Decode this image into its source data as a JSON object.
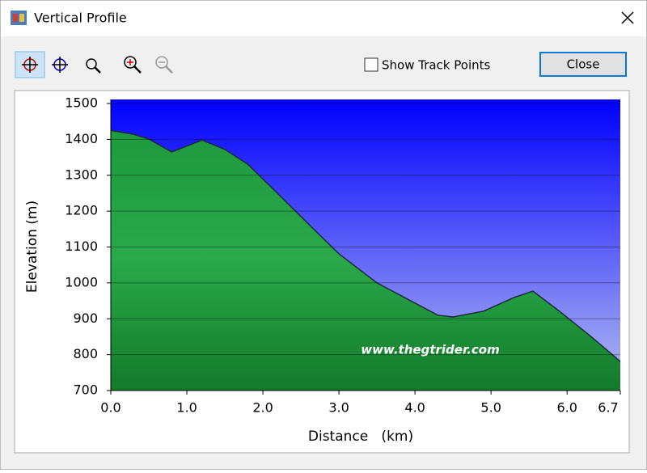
{
  "window": {
    "title": "Vertical Profile"
  },
  "toolbar": {
    "checkbox_label": "Show Track Points",
    "button": "Close"
  },
  "chart_data": {
    "type": "area",
    "x": [
      0.0,
      0.3,
      0.5,
      0.8,
      1.2,
      1.5,
      1.8,
      2.2,
      2.6,
      3.0,
      3.5,
      3.9,
      4.3,
      4.5,
      4.9,
      5.3,
      5.55,
      5.9,
      6.3,
      6.7
    ],
    "values": [
      1425,
      1414,
      1401,
      1365,
      1398,
      1372,
      1331,
      1248,
      1164,
      1081,
      1000,
      955,
      910,
      905,
      921,
      959,
      977,
      921,
      853,
      781
    ],
    "xlabel": "Distance   (km)",
    "ylabel": "Elevation (m)",
    "xlim": [
      0,
      6.7
    ],
    "ylim": [
      700,
      1500
    ],
    "xticks": [
      {
        "value": 0,
        "label": "0.0"
      },
      {
        "value": 1,
        "label": "1.0"
      },
      {
        "value": 2,
        "label": "2.0"
      },
      {
        "value": 3,
        "label": "3.0"
      },
      {
        "value": 4,
        "label": "4.0"
      },
      {
        "value": 5,
        "label": "5.0"
      },
      {
        "value": 6,
        "label": "6.0"
      },
      6.7
    ],
    "yticks": [
      700,
      800,
      900,
      1000,
      1100,
      1200,
      1300,
      1400,
      1500
    ],
    "grid": true,
    "color": "#1f9a3e",
    "annotation": "www.thegtrider.com"
  }
}
